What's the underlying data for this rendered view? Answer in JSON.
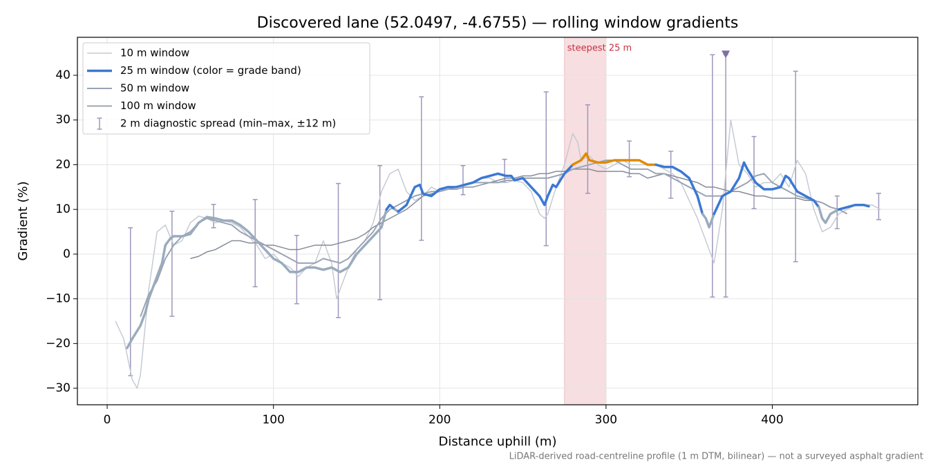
{
  "chart_data": {
    "type": "line",
    "title": "Discovered lane (52.0497, -4.6755) — rolling window gradients",
    "xlabel": "Distance uphill (m)",
    "ylabel": "Gradient (%)",
    "note": "LiDAR-derived road-centreline profile (1 m DTM, bilinear) — not a surveyed asphalt gradient",
    "xlim": [
      -17.9,
      487.5
    ],
    "ylim": [
      -33.7,
      48.5
    ],
    "xticks": [
      0,
      100,
      200,
      300,
      400
    ],
    "yticks": [
      {
        "value": -30,
        "label": "−30"
      },
      {
        "value": -20,
        "label": "−20"
      },
      {
        "value": -10,
        "label": "−10"
      },
      0,
      10,
      20,
      30,
      40
    ],
    "grid": true,
    "legend": "upper left",
    "series": [
      {
        "name": "10 m window",
        "color": "#c5cad3",
        "width": 1.5,
        "x": [
          5,
          10,
          15,
          18,
          20,
          25,
          30,
          35,
          40,
          45,
          50,
          55,
          60,
          65,
          70,
          75,
          80,
          85,
          90,
          95,
          100,
          105,
          110,
          115,
          120,
          125,
          130,
          135,
          138,
          140,
          145,
          150,
          155,
          160,
          165,
          170,
          175,
          180,
          185,
          190,
          195,
          200,
          205,
          210,
          215,
          220,
          225,
          230,
          235,
          240,
          245,
          250,
          255,
          260,
          263,
          265,
          270,
          275,
          280,
          283,
          285,
          290,
          295,
          300,
          305,
          310,
          315,
          320,
          325,
          330,
          335,
          340,
          345,
          350,
          355,
          360,
          365,
          370,
          373,
          375,
          380,
          385,
          390,
          395,
          400,
          405,
          410,
          415,
          420,
          425,
          430,
          435,
          440,
          445,
          450,
          455,
          460,
          465
        ],
        "values": [
          -15,
          -19,
          -28,
          -30,
          -27,
          -8,
          5,
          6.5,
          2,
          3,
          7,
          8.5,
          8,
          7,
          7.5,
          7,
          6,
          4,
          2,
          -1,
          0,
          -2,
          -3,
          -5,
          -3,
          -2,
          3,
          -2,
          -10,
          -8,
          -3,
          1,
          3,
          7,
          14,
          18,
          19,
          14,
          12,
          13,
          15,
          14,
          15,
          15,
          15.5,
          16,
          17,
          17,
          16,
          16,
          16.5,
          16,
          14,
          9,
          8,
          9,
          15,
          20,
          27,
          25,
          21,
          22,
          20,
          19,
          20,
          21,
          20,
          20,
          20,
          20,
          19,
          18,
          16,
          12,
          8,
          3,
          -2,
          10,
          22,
          30,
          20,
          18,
          15,
          16,
          16,
          18,
          15,
          21,
          18,
          10,
          5,
          6,
          9,
          10,
          11,
          11,
          11,
          10
        ]
      },
      {
        "name": "25 m window (color = grade band)",
        "color": "#3a78d4",
        "width": 3.5,
        "grade_bands": [
          {
            "below": 10,
            "color": "#9aabbd"
          },
          {
            "below": 20,
            "color": "#3a78d4"
          },
          {
            "below": 100,
            "color": "#e08a00"
          }
        ],
        "x": [
          12,
          15,
          20,
          23,
          25,
          28,
          30,
          33,
          35,
          38,
          40,
          45,
          50,
          55,
          60,
          65,
          70,
          75,
          80,
          85,
          90,
          95,
          100,
          105,
          110,
          115,
          120,
          125,
          130,
          135,
          140,
          145,
          150,
          155,
          160,
          165,
          168,
          170,
          173,
          175,
          180,
          185,
          188,
          190,
          195,
          200,
          205,
          210,
          215,
          220,
          225,
          230,
          235,
          240,
          243,
          245,
          250,
          255,
          260,
          263,
          265,
          268,
          270,
          275,
          280,
          285,
          288,
          290,
          295,
          300,
          305,
          310,
          315,
          320,
          325,
          330,
          335,
          340,
          345,
          350,
          355,
          358,
          360,
          362,
          365,
          370,
          375,
          380,
          383,
          385,
          390,
          395,
          400,
          405,
          408,
          410,
          415,
          420,
          425,
          428,
          430,
          432,
          435,
          440,
          445,
          450,
          455,
          458
        ],
        "values": [
          -21,
          -19,
          -16,
          -13,
          -10,
          -7,
          -5,
          -2,
          2,
          3.5,
          4,
          4,
          4.5,
          7,
          8.3,
          8,
          7.5,
          7.5,
          6.5,
          5,
          3,
          1,
          -1,
          -2,
          -4,
          -4,
          -3,
          -3,
          -3.5,
          -3,
          -4,
          -3,
          0,
          2,
          4,
          6,
          10,
          11,
          10,
          9.5,
          11,
          15,
          15.5,
          13.5,
          13,
          14.5,
          15,
          15,
          15.5,
          16,
          17,
          17.5,
          18,
          17.5,
          17.5,
          16.5,
          17,
          15,
          13,
          11,
          13,
          15.5,
          15,
          18,
          20,
          21,
          22.5,
          21,
          20.5,
          20.5,
          21,
          21,
          21,
          21,
          20,
          20,
          19.5,
          19.5,
          18.5,
          17,
          13,
          9,
          8,
          6,
          9,
          13,
          14,
          17,
          20.5,
          19,
          16,
          14.5,
          14.5,
          15,
          17.5,
          17,
          14,
          13,
          12,
          10.5,
          8,
          7,
          9,
          10,
          10.5,
          11,
          11,
          10.7
        ]
      },
      {
        "name": "50 m window",
        "color": "#9aa3b4",
        "width": 2,
        "x": [
          20,
          25,
          30,
          35,
          40,
          45,
          50,
          55,
          60,
          65,
          70,
          75,
          80,
          85,
          90,
          95,
          100,
          105,
          110,
          115,
          120,
          125,
          130,
          135,
          140,
          145,
          150,
          155,
          160,
          165,
          170,
          175,
          180,
          185,
          190,
          195,
          200,
          205,
          210,
          215,
          220,
          225,
          230,
          235,
          240,
          245,
          250,
          255,
          260,
          265,
          270,
          275,
          280,
          285,
          290,
          295,
          300,
          305,
          310,
          315,
          320,
          325,
          330,
          335,
          340,
          345,
          350,
          355,
          360,
          365,
          370,
          375,
          380,
          385,
          390,
          395,
          400,
          405,
          410,
          415,
          420,
          425,
          430,
          435,
          440,
          445
        ],
        "values": [
          -14,
          -9,
          -6,
          -1,
          2,
          4,
          5,
          7,
          8,
          7.5,
          7,
          6.5,
          5,
          4,
          3,
          2,
          1,
          0,
          -1,
          -2,
          -2,
          -2,
          -1,
          -1.5,
          -2,
          -1,
          1,
          3,
          5,
          8,
          10,
          11,
          12,
          13,
          13.5,
          14,
          14,
          14.5,
          15,
          15.5,
          16,
          16,
          16,
          16,
          16.5,
          16.5,
          17,
          17,
          17,
          17,
          17.5,
          18,
          19,
          19.5,
          20,
          20.5,
          21,
          21,
          20,
          19,
          19,
          19,
          18,
          18,
          17,
          16,
          15,
          14,
          13,
          13,
          13,
          14,
          15,
          16,
          17.5,
          18,
          16,
          15,
          14,
          13,
          12.5,
          12,
          11.5,
          10.5,
          10,
          9
        ]
      },
      {
        "name": "100 m window",
        "color": "#858b98",
        "width": 1.5,
        "x": [
          50,
          55,
          60,
          65,
          70,
          75,
          80,
          85,
          90,
          95,
          100,
          105,
          110,
          115,
          120,
          125,
          130,
          135,
          140,
          145,
          150,
          155,
          160,
          165,
          170,
          175,
          180,
          185,
          190,
          195,
          200,
          205,
          210,
          215,
          220,
          225,
          230,
          235,
          240,
          245,
          250,
          255,
          260,
          265,
          270,
          275,
          280,
          285,
          290,
          295,
          300,
          305,
          310,
          315,
          320,
          325,
          330,
          335,
          340,
          345,
          350,
          355,
          360,
          365,
          370,
          375,
          380,
          385,
          390,
          395,
          400,
          405,
          410,
          415,
          420,
          425,
          430
        ],
        "values": [
          -1,
          -0.5,
          0.5,
          1,
          2,
          3,
          3,
          2.5,
          2.5,
          2,
          2,
          1.5,
          1,
          1,
          1.5,
          2,
          2,
          2,
          2.5,
          3,
          3.5,
          4.5,
          6,
          7,
          8,
          9,
          10,
          11.5,
          13,
          13.5,
          14,
          14.5,
          14.5,
          15,
          15,
          15.5,
          16,
          16.5,
          17,
          17,
          17.5,
          17.5,
          18,
          18,
          18.5,
          18.5,
          19,
          19,
          19,
          18.5,
          18.5,
          18.5,
          18.5,
          18,
          18,
          17,
          17.5,
          18,
          17.5,
          17,
          16.5,
          16,
          15,
          15,
          14.5,
          14,
          14,
          13.5,
          13,
          13,
          12.5,
          12.5,
          12.5,
          12.5,
          12,
          12,
          11.5
        ]
      }
    ],
    "errorbars": {
      "name": "2 m diagnostic spread (min–max, ±12 m)",
      "color": "#9d97bd",
      "x": [
        14,
        39,
        64,
        89,
        114,
        139,
        164,
        189,
        214,
        239,
        264,
        289,
        314,
        339,
        364,
        372,
        389,
        414,
        439,
        464
      ],
      "low": [
        -27.2,
        -13.9,
        5.9,
        -7.3,
        -11.1,
        -14.2,
        -10.2,
        3.1,
        13.3,
        16.1,
        1.9,
        13.6,
        17.3,
        12.5,
        -9.6,
        -9.6,
        10.2,
        -1.7,
        5.7,
        7.7
      ],
      "high": [
        5.9,
        9.6,
        11.1,
        12.2,
        4.2,
        15.8,
        19.8,
        35.2,
        19.8,
        21.2,
        36.3,
        33.4,
        25.3,
        23.0,
        44.6,
        44.6,
        26.3,
        40.9,
        13.0,
        13.6
      ]
    },
    "highlight": {
      "x": [
        275,
        300
      ],
      "label": "steepest 25 m",
      "color": "#e8a0a8"
    },
    "marker": {
      "x": 372,
      "y": 44.6,
      "color": "#7f6fa6"
    }
  }
}
